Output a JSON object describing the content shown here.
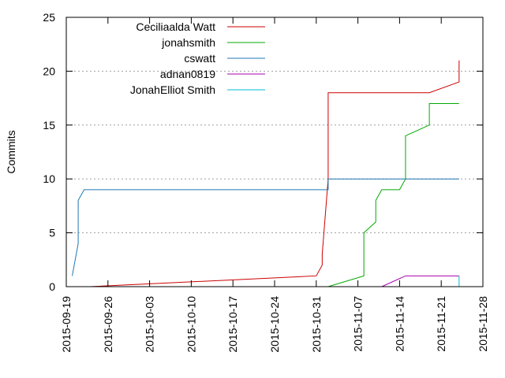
{
  "chart_data": {
    "type": "line",
    "title": "",
    "xlabel": "",
    "ylabel": "Commits",
    "xlim": [
      "2015-09-19",
      "2015-11-28"
    ],
    "ylim": [
      0,
      25
    ],
    "x_ticks": [
      "2015-09-19",
      "2015-09-26",
      "2015-10-03",
      "2015-10-10",
      "2015-10-17",
      "2015-10-24",
      "2015-10-31",
      "2015-11-07",
      "2015-11-14",
      "2015-11-21",
      "2015-11-28"
    ],
    "y_ticks": [
      0,
      5,
      10,
      15,
      20,
      25
    ],
    "grid": {
      "horizontal": true,
      "vertical": false
    },
    "legend_position": "top-left",
    "series": [
      {
        "name": "Ceciliaalda Watt",
        "color": "#cc0000",
        "points": [
          {
            "x": "2015-09-23",
            "y": 0
          },
          {
            "x": "2015-10-31",
            "y": 1
          },
          {
            "x": "2015-11-01",
            "y": 2
          },
          {
            "x": "2015-11-01",
            "y": 3
          },
          {
            "x": "2015-11-02",
            "y": 10
          },
          {
            "x": "2015-11-02",
            "y": 18
          },
          {
            "x": "2015-11-19",
            "y": 18
          },
          {
            "x": "2015-11-24",
            "y": 19
          },
          {
            "x": "2015-11-24",
            "y": 21
          }
        ]
      },
      {
        "name": "jonahsmith",
        "color": "#00aa00",
        "points": [
          {
            "x": "2015-11-02",
            "y": 0
          },
          {
            "x": "2015-11-08",
            "y": 1
          },
          {
            "x": "2015-11-08",
            "y": 5
          },
          {
            "x": "2015-11-10",
            "y": 6
          },
          {
            "x": "2015-11-10",
            "y": 8
          },
          {
            "x": "2015-11-11",
            "y": 9
          },
          {
            "x": "2015-11-14",
            "y": 9
          },
          {
            "x": "2015-11-15",
            "y": 10
          },
          {
            "x": "2015-11-15",
            "y": 14
          },
          {
            "x": "2015-11-19",
            "y": 15
          },
          {
            "x": "2015-11-19",
            "y": 17
          },
          {
            "x": "2015-11-24",
            "y": 17
          }
        ]
      },
      {
        "name": "cswatt",
        "color": "#1f77b4",
        "points": [
          {
            "x": "2015-09-20",
            "y": 1
          },
          {
            "x": "2015-09-21",
            "y": 4
          },
          {
            "x": "2015-09-21",
            "y": 8
          },
          {
            "x": "2015-09-22",
            "y": 9
          },
          {
            "x": "2015-11-02",
            "y": 9
          },
          {
            "x": "2015-11-02",
            "y": 10
          },
          {
            "x": "2015-11-24",
            "y": 10
          }
        ]
      },
      {
        "name": "adnan0819",
        "color": "#aa00aa",
        "points": [
          {
            "x": "2015-11-11",
            "y": 0
          },
          {
            "x": "2015-11-15",
            "y": 1
          },
          {
            "x": "2015-11-24",
            "y": 1
          }
        ]
      },
      {
        "name": "JonahElliot Smith",
        "color": "#00bcd4",
        "points": [
          {
            "x": "2015-11-24",
            "y": 1
          },
          {
            "x": "2015-11-24",
            "y": 0
          }
        ]
      }
    ]
  }
}
